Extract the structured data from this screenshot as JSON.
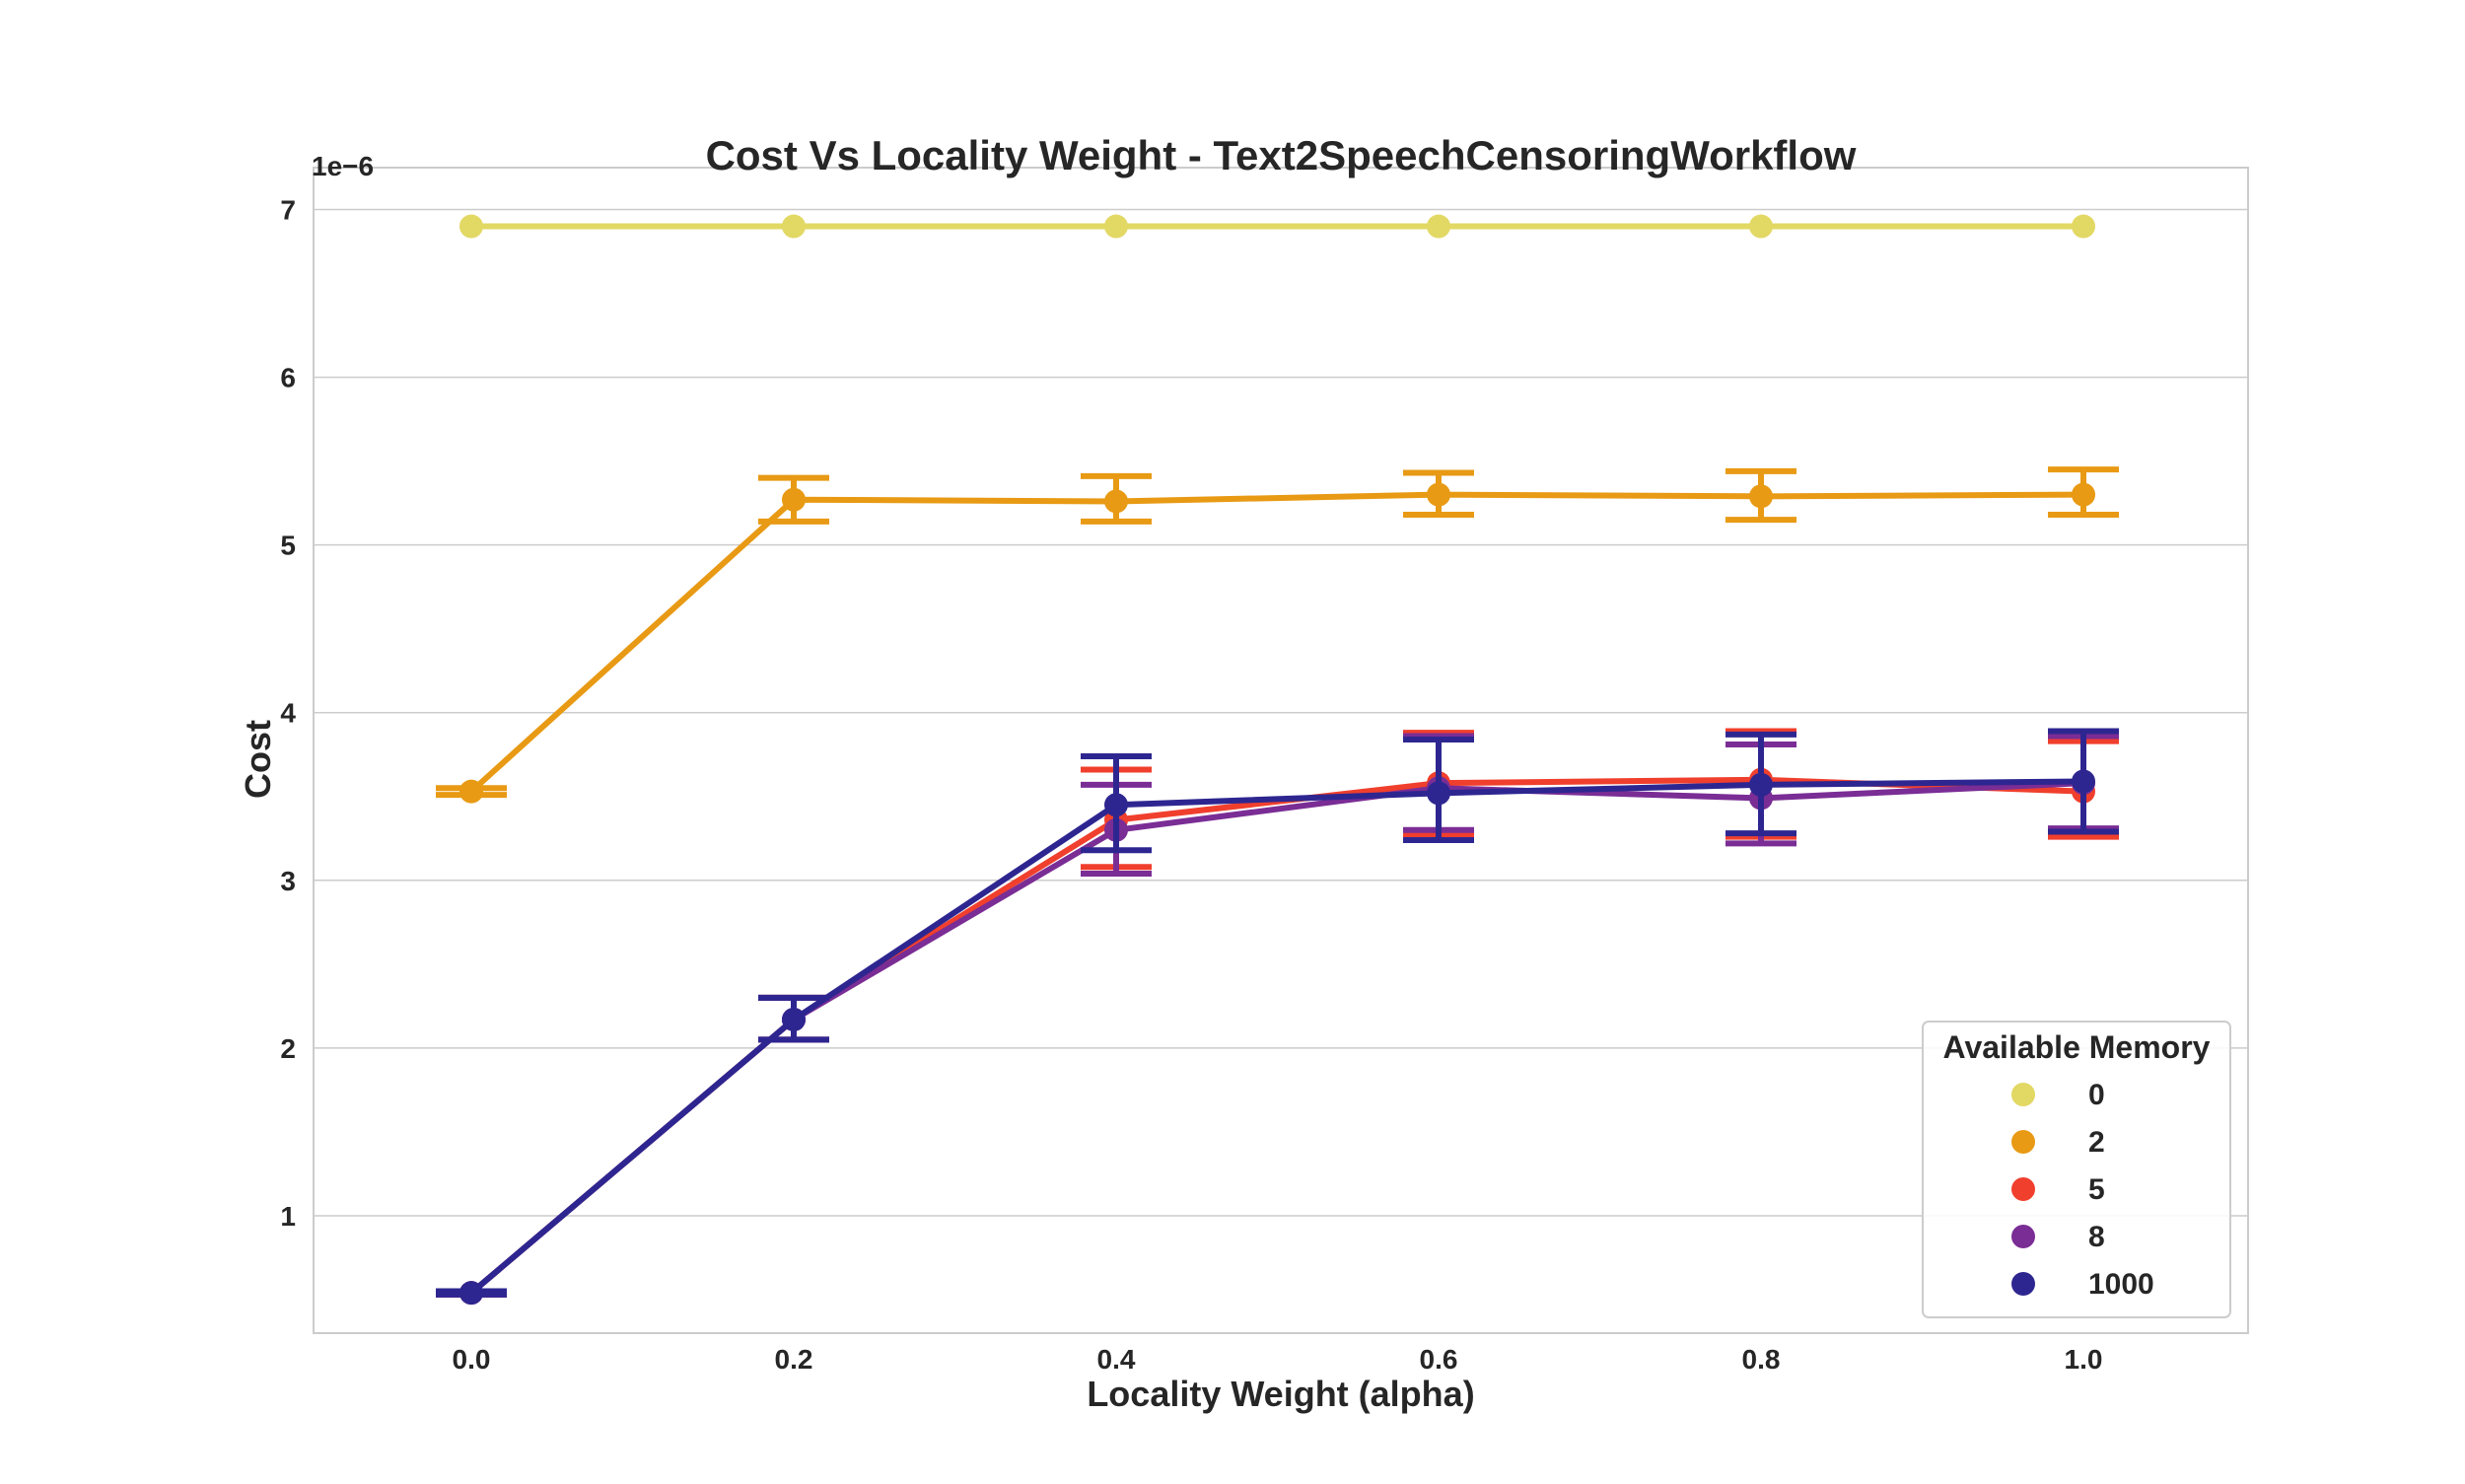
{
  "chart_data": {
    "type": "line",
    "title": "Cost Vs Locality Weight - Text2SpeechCensoringWorkflow",
    "xlabel": "Locality Weight (alpha)",
    "ylabel": "Cost",
    "y_scale_label": "1e−6",
    "categories": [
      "0.0",
      "0.2",
      "0.4",
      "0.6",
      "0.8",
      "1.0"
    ],
    "y_ticks": [
      "1",
      "2",
      "3",
      "4",
      "5",
      "6",
      "7"
    ],
    "ylim": [
      0.3,
      7.25
    ],
    "grid": "horizontal",
    "legend": {
      "title": "Available Memory",
      "placement": "bottom-right"
    },
    "series": [
      {
        "name": "0",
        "color": "#e2d864",
        "values": [
          6.9,
          6.9,
          6.9,
          6.9,
          6.9,
          6.9
        ],
        "err_low": [
          6.9,
          6.9,
          6.9,
          6.9,
          6.9,
          6.9
        ],
        "err_high": [
          6.9,
          6.9,
          6.9,
          6.9,
          6.9,
          6.9
        ]
      },
      {
        "name": "2",
        "color": "#e89a14",
        "values": [
          3.53,
          5.27,
          5.26,
          5.3,
          5.29,
          5.3
        ],
        "err_low": [
          3.51,
          5.14,
          5.14,
          5.18,
          5.15,
          5.18
        ],
        "err_high": [
          3.55,
          5.4,
          5.41,
          5.43,
          5.44,
          5.45
        ]
      },
      {
        "name": "5",
        "color": "#f03f2d",
        "values": [
          0.54,
          2.17,
          3.36,
          3.58,
          3.6,
          3.53
        ],
        "err_low": [
          0.53,
          2.05,
          3.08,
          3.27,
          3.26,
          3.26
        ],
        "err_high": [
          0.55,
          2.3,
          3.66,
          3.88,
          3.89,
          3.83
        ]
      },
      {
        "name": "8",
        "color": "#7a2d95",
        "values": [
          0.54,
          2.17,
          3.3,
          3.55,
          3.49,
          3.58
        ],
        "err_low": [
          0.53,
          2.05,
          3.04,
          3.3,
          3.22,
          3.31
        ],
        "err_high": [
          0.55,
          2.3,
          3.57,
          3.86,
          3.81,
          3.86
        ]
      },
      {
        "name": "1000",
        "color": "#2e2690",
        "values": [
          0.54,
          2.17,
          3.45,
          3.52,
          3.57,
          3.59
        ],
        "err_low": [
          0.53,
          2.05,
          3.18,
          3.24,
          3.28,
          3.29
        ],
        "err_high": [
          0.55,
          2.3,
          3.74,
          3.84,
          3.87,
          3.89
        ]
      }
    ]
  }
}
